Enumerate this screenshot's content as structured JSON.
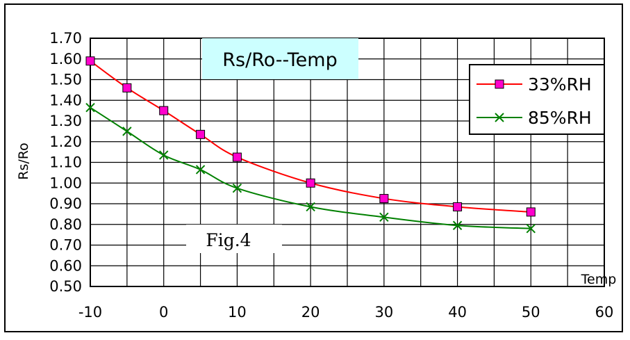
{
  "chart_data": {
    "type": "line",
    "title": "Rs/Ro--Temp",
    "xlabel": "Temp",
    "ylabel": "Rs/Ro",
    "annotation": "Fig.4",
    "xlim": [
      -10,
      60
    ],
    "ylim": [
      0.5,
      1.7
    ],
    "x_ticks": [
      "-10",
      "0",
      "10",
      "20",
      "30",
      "40",
      "50",
      "60"
    ],
    "y_ticks": [
      "0.50",
      "0.60",
      "0.70",
      "0.80",
      "0.90",
      "1.00",
      "1.10",
      "1.20",
      "1.30",
      "1.40",
      "1.50",
      "1.60",
      "1.70"
    ],
    "grid": true,
    "legend_position": "top-right",
    "series": [
      {
        "name": "33%RH",
        "color": "#ff0000",
        "marker": "square",
        "marker_color": "#ff00cc",
        "x": [
          -10,
          -5,
          0,
          5,
          10,
          20,
          30,
          40,
          50
        ],
        "y": [
          1.59,
          1.46,
          1.35,
          1.235,
          1.125,
          1.0,
          0.925,
          0.885,
          0.86
        ]
      },
      {
        "name": "85%RH",
        "color": "#008000",
        "marker": "x",
        "marker_color": "#008000",
        "x": [
          -10,
          -5,
          0,
          5,
          10,
          20,
          30,
          40,
          50
        ],
        "y": [
          1.365,
          1.25,
          1.135,
          1.065,
          0.975,
          0.885,
          0.835,
          0.795,
          0.78
        ]
      }
    ]
  }
}
